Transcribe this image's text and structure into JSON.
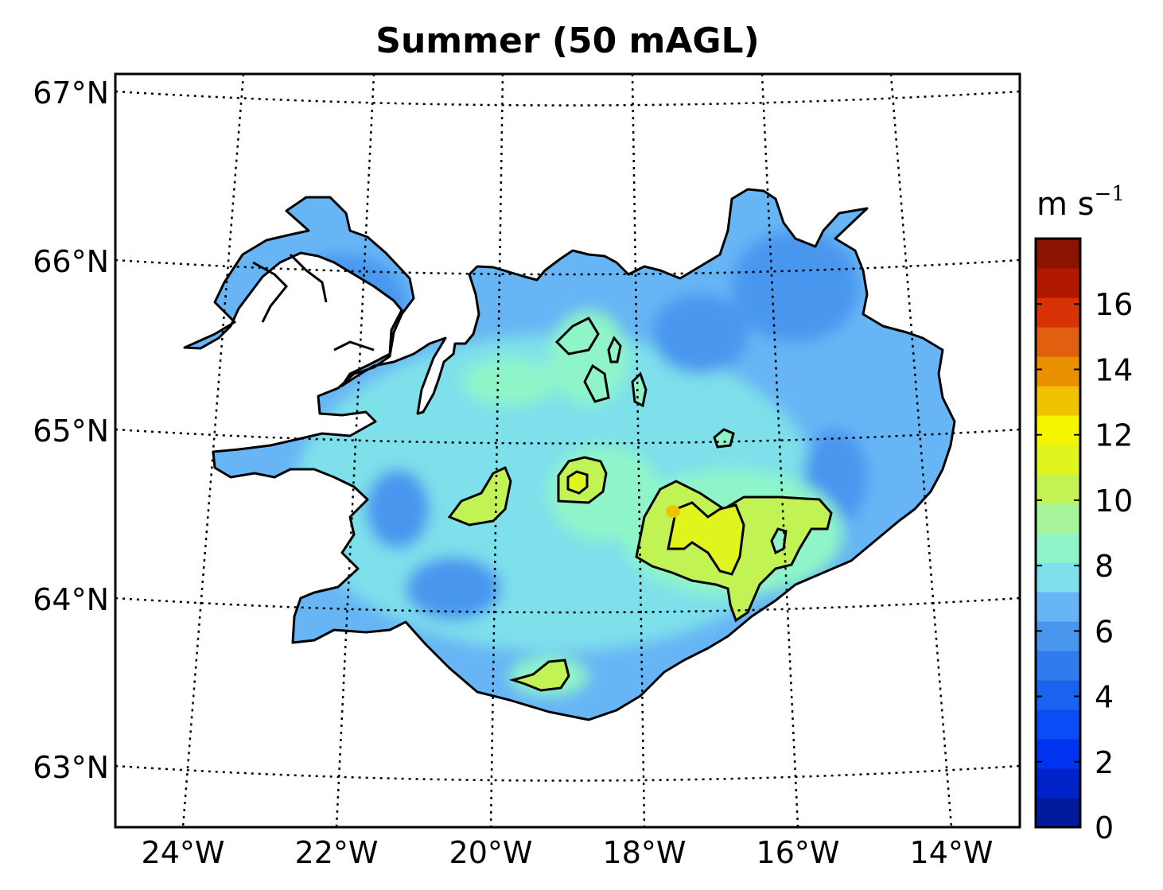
{
  "title": "Summer (50 mAGL)",
  "map": {
    "region": "Iceland",
    "lat_labels": [
      "67°N",
      "66°N",
      "65°N",
      "64°N",
      "63°N"
    ],
    "lon_labels": [
      "24°W",
      "22°W",
      "20°W",
      "18°W",
      "16°W",
      "14°W"
    ],
    "gridlines": "dotted"
  },
  "colorbar": {
    "unit": "m s",
    "unit_exponent": "−1",
    "tick_labels": [
      "0",
      "2",
      "4",
      "6",
      "8",
      "10",
      "12",
      "14",
      "16"
    ],
    "range": [
      0,
      18
    ],
    "levels": 18,
    "colors": [
      "#001a9e",
      "#0022c9",
      "#0033f0",
      "#0a4cf5",
      "#1a63f0",
      "#2f7cef",
      "#4a96ef",
      "#67b5f5",
      "#7ee0ea",
      "#8ff5c8",
      "#a6f59a",
      "#c1f355",
      "#e0f51e",
      "#f5f500",
      "#f0c200",
      "#e89000",
      "#e06010",
      "#d83208",
      "#b01800",
      "#8a1400"
    ]
  }
}
